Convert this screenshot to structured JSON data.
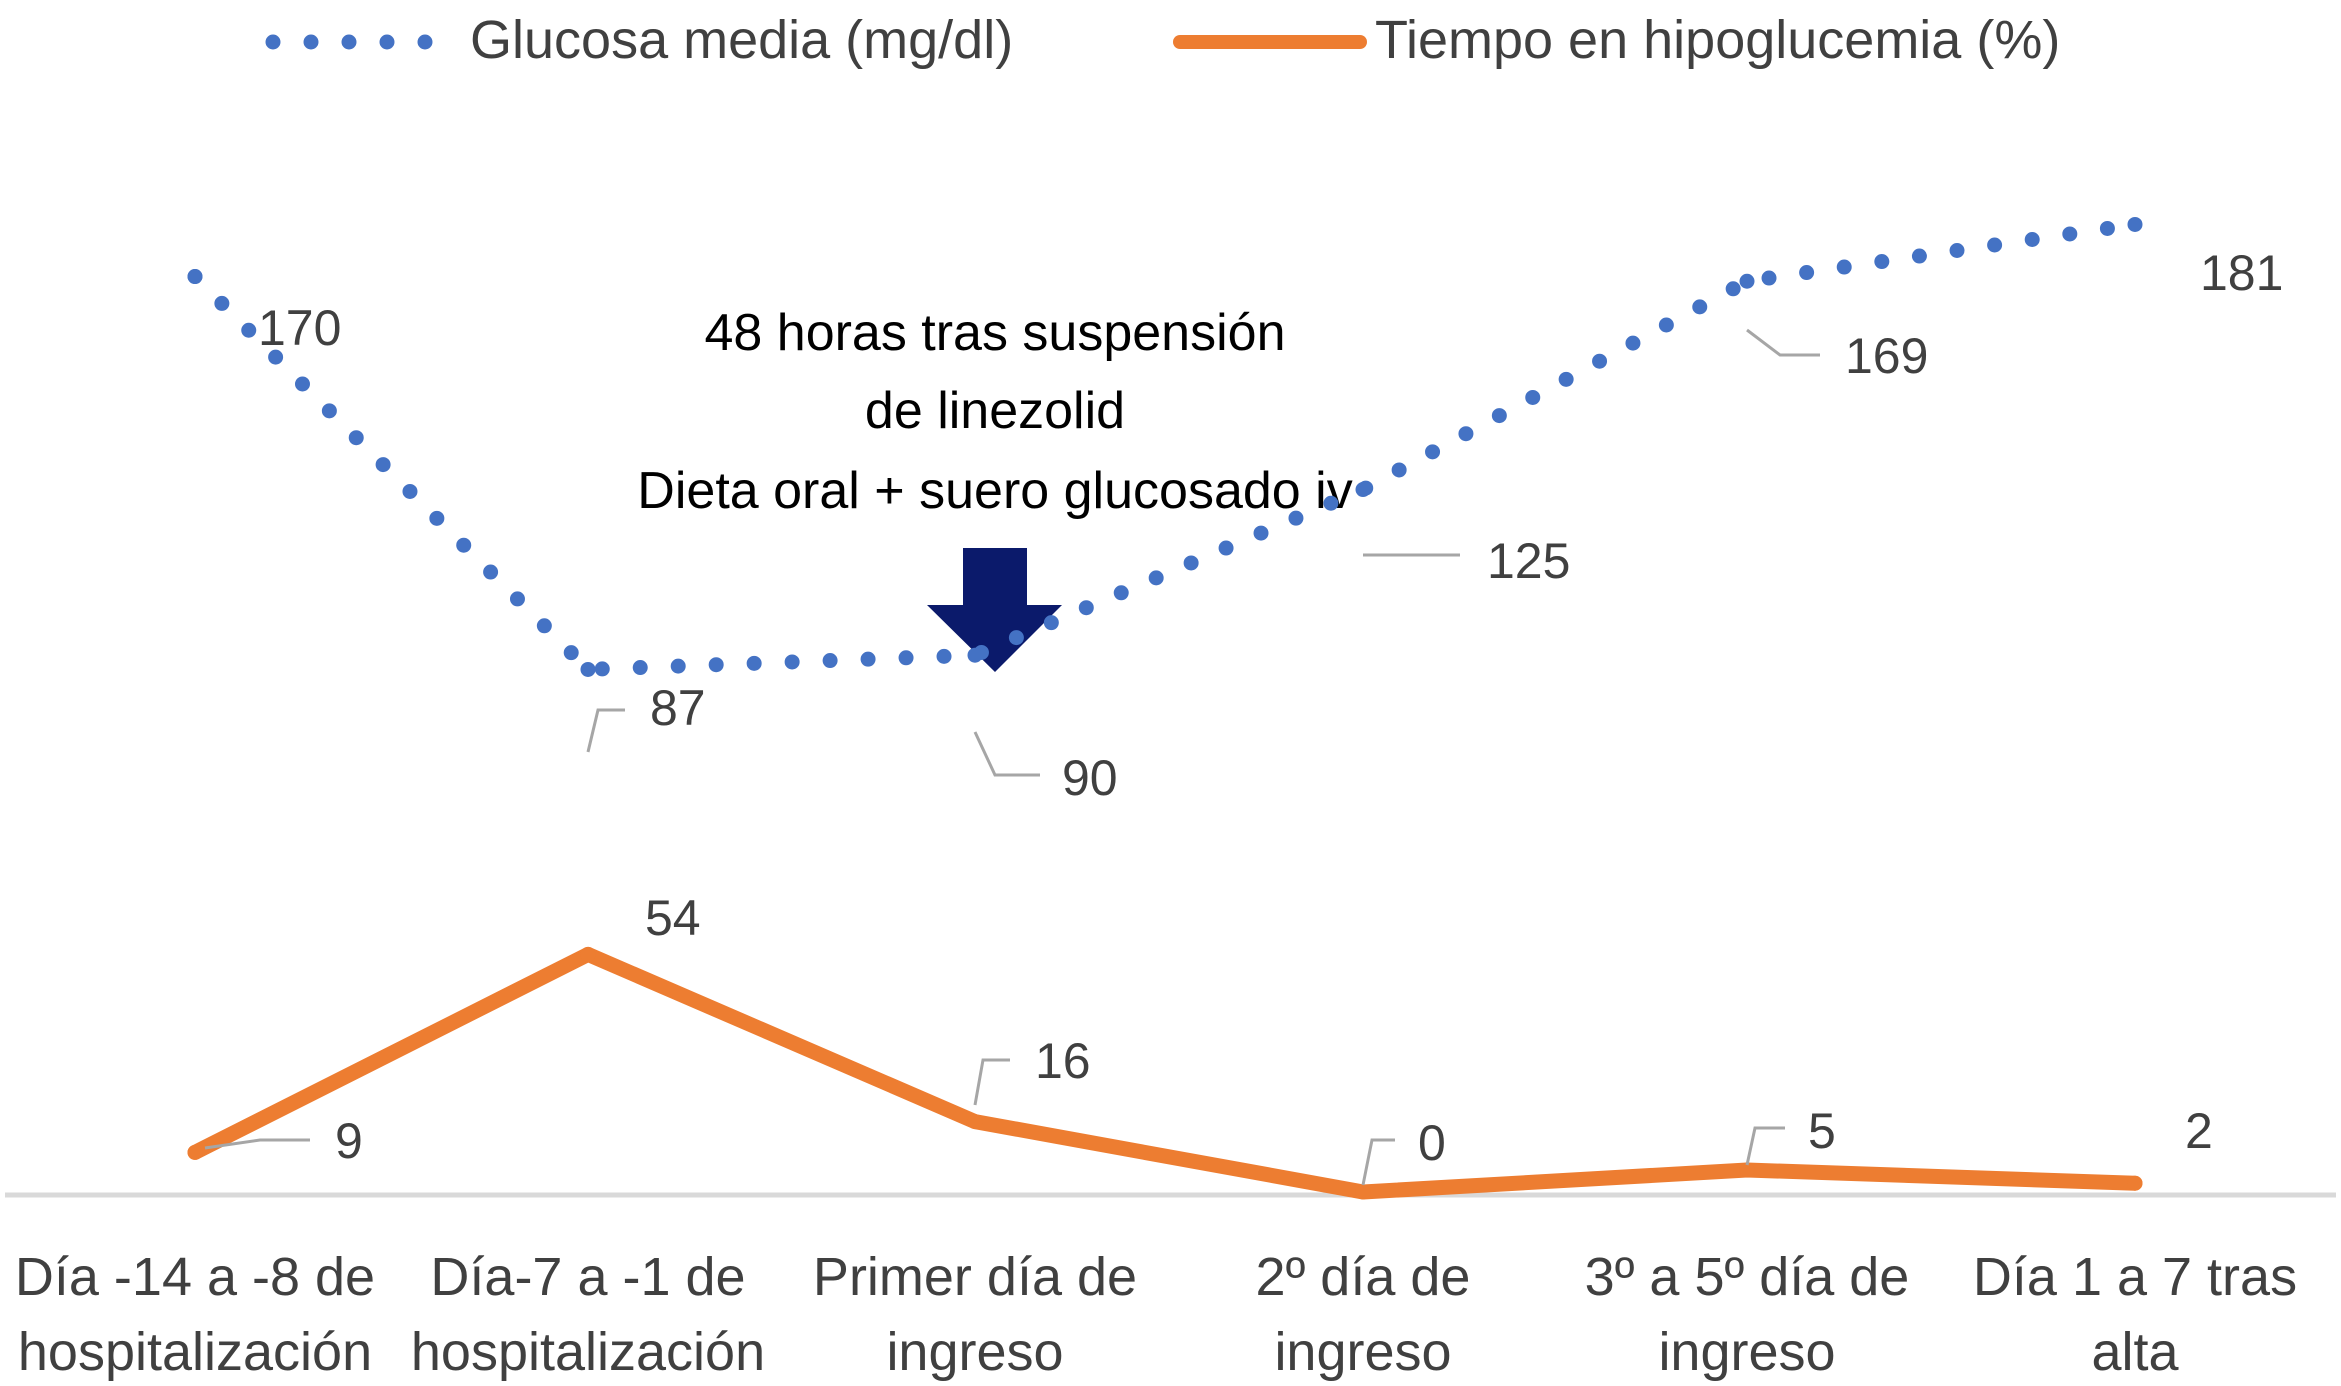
{
  "chart_data": {
    "type": "line",
    "title": "",
    "xlabel": "",
    "ylabel": "",
    "categories": [
      [
        "Día -14 a -8 de",
        "hospitalización"
      ],
      [
        "Día-7 a -1 de",
        "hospitalización"
      ],
      [
        "Primer día de",
        "ingreso"
      ],
      [
        "2º día de",
        "ingreso"
      ],
      [
        "3º a 5º día de",
        "ingreso"
      ],
      [
        "Día 1 a 7 tras",
        "alta"
      ]
    ],
    "series": [
      {
        "name": "Glucosa media (mg/dl)",
        "values": [
          170,
          87,
          90,
          125,
          169,
          181
        ],
        "color": "#4472C4",
        "style": "dotted"
      },
      {
        "name": "Tiempo en hipoglucemia (%)",
        "values": [
          9,
          54,
          16,
          0,
          5,
          2
        ],
        "color": "#ED7D31",
        "style": "solid"
      }
    ],
    "legend_position": "top",
    "grid": false,
    "annotation": {
      "lines": [
        "48 horas tras suspensión",
        "de linezolid",
        "Dieta oral + suero glucosado iv"
      ],
      "arrow_color": "#0B1A6B",
      "points_to_category_index": 2
    }
  }
}
